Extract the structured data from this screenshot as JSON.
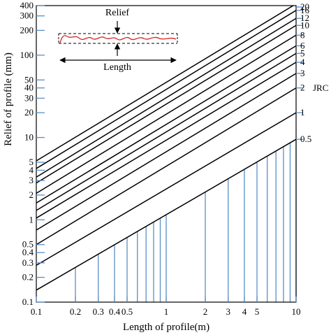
{
  "chart_data": {
    "type": "line",
    "title": "",
    "xlabel": "Length of profile(m)",
    "ylabel": "Relief of profile (mm)",
    "x_scale": "log",
    "y_scale": "log",
    "xlim": [
      0.1,
      10
    ],
    "ylim": [
      0.1,
      400
    ],
    "x_ticks": [
      0.1,
      0.2,
      0.3,
      0.4,
      0.5,
      1,
      2,
      3,
      4,
      5,
      10
    ],
    "x_tick_labels": [
      "0.1",
      "0.2",
      "0.3",
      "0.4",
      "0.5",
      "1",
      "2",
      "3",
      "4",
      "5",
      "10"
    ],
    "y_ticks": [
      0.1,
      0.2,
      0.3,
      0.4,
      0.5,
      1,
      2,
      3,
      4,
      5,
      10,
      20,
      30,
      40,
      50,
      100,
      200,
      300,
      400
    ],
    "y_tick_labels": [
      "0.1",
      "0.2",
      "0.3",
      "0.4",
      "0.5",
      "1",
      "2",
      "3",
      "4",
      "5",
      "10",
      "20",
      "30",
      "40",
      "50",
      "100",
      "200",
      "300",
      "400"
    ],
    "grid": false,
    "jrc_title": "JRC",
    "series": [
      {
        "name": "0.5",
        "x": [
          0.1,
          10
        ],
        "y": [
          0.14,
          9.5
        ]
      },
      {
        "name": "1",
        "x": [
          0.1,
          10
        ],
        "y": [
          0.28,
          20
        ]
      },
      {
        "name": "2",
        "x": [
          0.1,
          10
        ],
        "y": [
          0.5,
          40
        ]
      },
      {
        "name": "3",
        "x": [
          0.1,
          10
        ],
        "y": [
          0.75,
          60
        ]
      },
      {
        "name": "4",
        "x": [
          0.1,
          10
        ],
        "y": [
          1.05,
          82
        ]
      },
      {
        "name": "5",
        "x": [
          0.1,
          10
        ],
        "y": [
          1.3,
          105
        ]
      },
      {
        "name": "6",
        "x": [
          0.1,
          10
        ],
        "y": [
          1.6,
          130
        ]
      },
      {
        "name": "8",
        "x": [
          0.1,
          10
        ],
        "y": [
          2.1,
          175
        ]
      },
      {
        "name": "10",
        "x": [
          0.1,
          10
        ],
        "y": [
          2.8,
          230
        ]
      },
      {
        "name": "12",
        "x": [
          0.1,
          10
        ],
        "y": [
          3.3,
          280
        ]
      },
      {
        "name": "16",
        "x": [
          0.1,
          10
        ],
        "y": [
          4.2,
          350
        ]
      },
      {
        "name": "20",
        "x": [
          0.1,
          10
        ],
        "y": [
          5.2,
          420
        ]
      }
    ],
    "reference_lines_x": [
      0.2,
      0.3,
      0.4,
      0.5,
      0.6,
      0.7,
      0.8,
      0.9,
      1,
      2,
      3,
      4,
      5,
      6,
      7,
      8,
      9,
      10
    ],
    "inset": {
      "relief_label": "Relief",
      "length_label": "Length"
    },
    "colors": {
      "lines": "#000000",
      "reference": "#5b8fc4",
      "ticks": "#5b8fc4",
      "profile": "#d9242b"
    }
  }
}
